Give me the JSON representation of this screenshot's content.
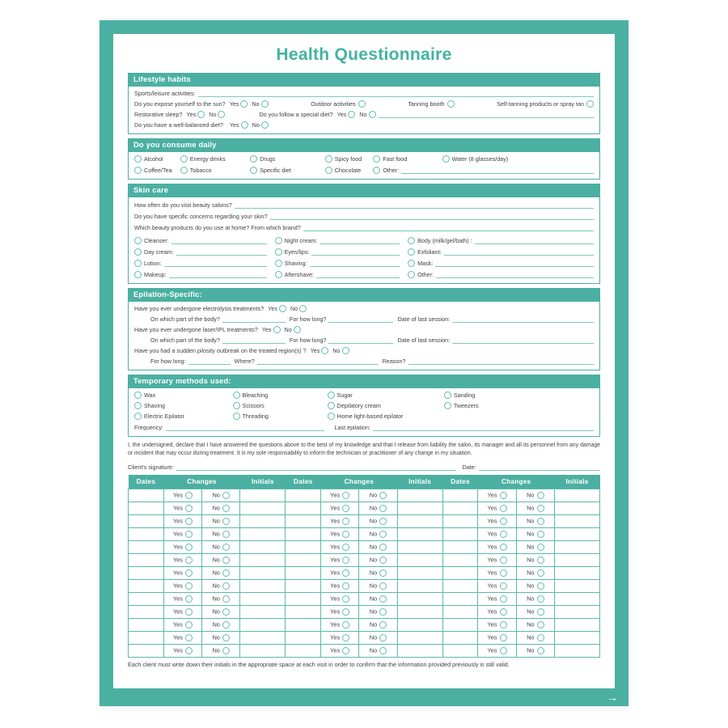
{
  "title": "Health Questionnaire",
  "arrow_icon": "→",
  "labels": {
    "yes": "Yes",
    "no": "No"
  },
  "colors": {
    "teal": "#4bb0a2",
    "teal_soft": "#5cb9ac",
    "line": "#7fc8bc",
    "circle": "#62bcae",
    "text": "#414141",
    "title": "#42b3a3"
  },
  "lifestyle": {
    "header": "Lifestyle habits",
    "sports_label": "Sports/leisure activities:",
    "sun_q": "Do you expose yourself to the sun?",
    "outdoor": "Outdoor activities",
    "tanning_booth": "Tanning booth",
    "self_tanning": "Self-tanning products or spray tan",
    "sleep_q": "Restorative sleep?",
    "special_diet_q": "Do you follow a special diet?",
    "balanced_diet_q": "Do you have a well-balanced diet?"
  },
  "consume": {
    "header": "Do you consume daily",
    "row1": [
      "Alcohol",
      "Energy drinks",
      "Drugs",
      "Spicy food",
      "Fast food",
      "Water (8 glasses/day)"
    ],
    "row2": [
      "Coffee/Tea",
      "Tobacco",
      "Specific diet",
      "Chocolate"
    ],
    "other_label": "Other:"
  },
  "skincare": {
    "header": "Skin care",
    "q1": "How often do you visit beauty salons?",
    "q2": "Do you have specific concerns regarding your skin?",
    "q3": "Which beauty products do you use at home? From which brand?",
    "columns": [
      [
        "Cleanser:",
        "Day cream:",
        "Lotion:",
        "Makeup:"
      ],
      [
        "Night cream:",
        "Eyes/lips:",
        "Shaving:",
        "Aftershave:"
      ],
      [
        "Body (milk/gel/bath) :",
        "Exfoliant:",
        "Mask:",
        "Other:"
      ]
    ]
  },
  "epilation": {
    "header": "Epilation-Specific:",
    "q_electrolysis": "Have you ever undergone electrolysis treatments?",
    "q_laser": "Have you ever undergone laser/IPL treatments?",
    "q_pilosity": "Have you had a sudden pilosity outbreak on the treated region(s) ?",
    "body_part": "On which part of the body?",
    "for_how_long_q": "For how long?",
    "date_last_session": "Date of last session:",
    "for_how_long_c": "For how long:",
    "where": "Where?",
    "reason": "Reason?"
  },
  "temporary": {
    "header": "Temporary methods used:",
    "columns": [
      [
        "Wax",
        "Shaving",
        "Electric Epilator"
      ],
      [
        "Bleaching",
        "Scissors",
        "Threading"
      ],
      [
        "Sugar",
        "Depilatory cream",
        "Home light-based epilator"
      ],
      [
        "Sanding",
        "Tweezers"
      ]
    ],
    "frequency": "Frequency:",
    "last_epilation": "Last epilation:"
  },
  "declaration": "I, the undersigned, declare that I have answered the questions above to the best of my knowledge and that I release from liability the salon, its manager and all its personnel from any damage or incident that may occur during treatment. It is my sole responsability to inform the technician or practitioner of any change in my situation.",
  "signature": {
    "client_label": "Client's signature:",
    "date_label": "Date:"
  },
  "visits_table": {
    "group_headers": [
      "Dates",
      "Changes",
      "Initials"
    ],
    "groups": 3,
    "rows": 13,
    "yes": "Yes",
    "no": "No"
  },
  "footer_note": "Each client must write down their initials in the appropriate space at each visit in order to confirm that the information provided previously is still valid."
}
